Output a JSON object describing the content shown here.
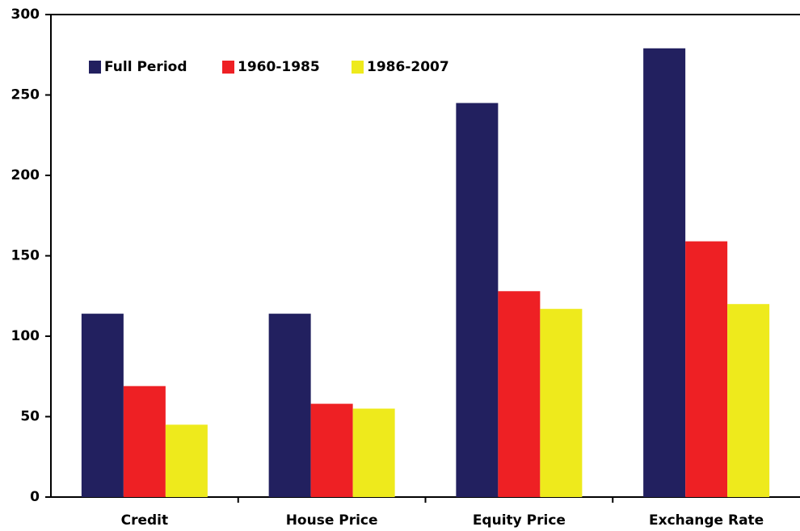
{
  "chart_data": {
    "type": "bar",
    "categories": [
      "Credit",
      "House Price",
      "Equity Price",
      "Exchange Rate"
    ],
    "series": [
      {
        "name": "Full Period",
        "color": "#22205f",
        "values": [
          114,
          114,
          245,
          279
        ]
      },
      {
        "name": "1960-1985",
        "color": "#ee2024",
        "values": [
          69,
          58,
          128,
          159
        ]
      },
      {
        "name": "1986-2007",
        "color": "#eeea1c",
        "values": [
          45,
          55,
          117,
          120
        ]
      }
    ],
    "ylim": [
      0,
      300
    ],
    "yticks": [
      0,
      50,
      100,
      150,
      200,
      250,
      300
    ],
    "grid": false,
    "legend": "top-left"
  }
}
